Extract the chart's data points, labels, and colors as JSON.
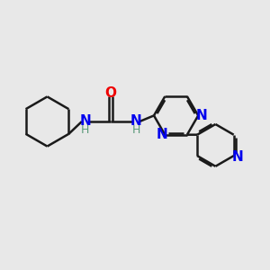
{
  "bg_color": "#e8e8e8",
  "bond_color": "#1a1a1a",
  "N_color": "#0000ee",
  "O_color": "#ee0000",
  "H_color": "#5a9a7a",
  "line_width": 1.8,
  "font_size": 11,
  "fig_size": [
    3.0,
    3.0
  ],
  "dpi": 100,
  "xlim": [
    0,
    10
  ],
  "ylim": [
    0,
    10
  ]
}
